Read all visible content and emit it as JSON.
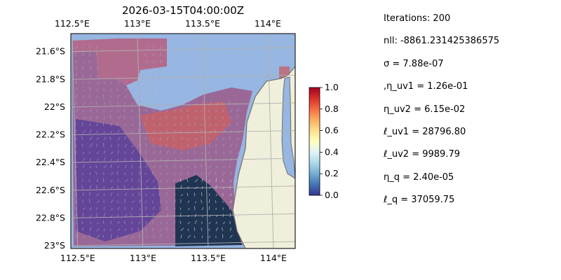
{
  "chart_data": [
    {
      "type": "heatmap",
      "title": "2026-03-15T04:00:00Z",
      "xlabel": "",
      "ylabel": "",
      "x_ticks": [
        "112.5°E",
        "113°E",
        "113.5°E",
        "114°E"
      ],
      "x_tick_values": [
        112.5,
        113.0,
        113.5,
        114.0
      ],
      "y_ticks": [
        "21.6°S",
        "21.8°S",
        "22°S",
        "22.2°S",
        "22.4°S",
        "22.6°S",
        "22.8°S",
        "23°S"
      ],
      "y_tick_values": [
        -21.6,
        -21.8,
        -22.0,
        -22.2,
        -22.4,
        -22.6,
        -22.8,
        -23.0
      ],
      "xlim": [
        112.49,
        114.21
      ],
      "ylim": [
        -23.02,
        -21.47
      ],
      "grid": true,
      "map_features": [
        "ocean",
        "coastline",
        "land",
        "velocity-quiver"
      ],
      "colorbar": {
        "cmap": "RdYlBu_r",
        "vmin": 0.0,
        "vmax": 1.0,
        "ticks": [
          "0.0",
          "0.2",
          "0.4",
          "0.6",
          "0.8",
          "1.0"
        ],
        "tick_values": [
          0.0,
          0.2,
          0.4,
          0.6,
          0.8,
          1.0
        ]
      }
    }
  ],
  "params": [
    "Iterations: 200",
    "nll: -8861.231425386575",
    "σ = 7.88e-07",
    ",η_uv1 = 1.26e-01",
    "η_uv2 = 6.15e-02",
    "ℓ_uv1 = 28796.80",
    "ℓ_uv2 = 9989.79",
    "η_q = 2.40e-05",
    "ℓ_q = 37059.75"
  ],
  "colors": {
    "ocean": "#97b6e1",
    "land": "#efefdb",
    "coast": "#6e6e6e",
    "grid": "#b0b0b0"
  }
}
